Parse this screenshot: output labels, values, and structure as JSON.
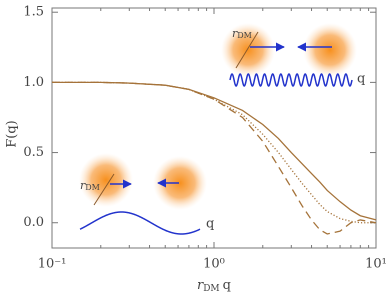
{
  "chart_data": {
    "type": "line",
    "xlabel": {
      "text": "r",
      "sub": "DM",
      "after": "q"
    },
    "ylabel": "F(q)",
    "log_x": true,
    "x": [
      0.1,
      0.2,
      0.3,
      0.5,
      0.7,
      1,
      1.5,
      2,
      2.5,
      3,
      3.5,
      4,
      4.5,
      5,
      6,
      7,
      8,
      10
    ],
    "series": [
      {
        "color": "#a5733a",
        "dash": "solid",
        "values": [
          1,
          1,
          0.995,
          0.98,
          0.95,
          0.89,
          0.8,
          0.7,
          0.6,
          0.5,
          0.42,
          0.35,
          0.29,
          0.23,
          0.15,
          0.09,
          0.05,
          0.02
        ]
      },
      {
        "color": "#a5733a",
        "dash": "dotted",
        "values": [
          1,
          1,
          0.995,
          0.98,
          0.95,
          0.88,
          0.77,
          0.63,
          0.5,
          0.38,
          0.28,
          0.2,
          0.13,
          0.08,
          0.03,
          0.01,
          0,
          0
        ]
      },
      {
        "color": "#a5733a",
        "dash": "dashed",
        "values": [
          1,
          1,
          0.995,
          0.98,
          0.95,
          0.88,
          0.75,
          0.58,
          0.4,
          0.25,
          0.12,
          0.02,
          -0.05,
          -0.08,
          -0.06,
          0,
          0.02,
          0
        ]
      }
    ],
    "xlim": [
      0.1,
      10
    ],
    "xticks": [
      {
        "value": 0.1,
        "label": "10⁻¹"
      },
      {
        "value": 1,
        "label": "10⁰"
      },
      {
        "value": 10,
        "label": "10¹"
      }
    ],
    "ylim": [
      -0.18,
      1.53
    ],
    "yticks": [
      {
        "value": 0,
        "label": "0.0"
      },
      {
        "value": 0.5,
        "label": "0.5"
      },
      {
        "value": 1,
        "label": "1.0"
      },
      {
        "value": 1.5,
        "label": "1.5"
      }
    ],
    "annotations": [
      {
        "text": "r",
        "sub": "DM"
      },
      {
        "text": "q"
      },
      {
        "text": "r",
        "sub": "DM"
      },
      {
        "text": "q"
      }
    ]
  }
}
